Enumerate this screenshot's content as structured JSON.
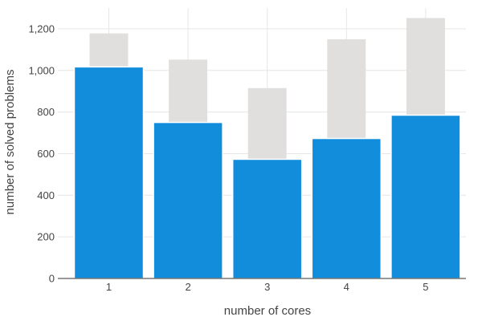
{
  "chart_data": {
    "type": "bar",
    "categories": [
      "1",
      "2",
      "3",
      "4",
      "5"
    ],
    "series": [
      {
        "values": [
          1017,
          750,
          573,
          673,
          785
        ],
        "color": "#118DDC"
      },
      {
        "values": [
          1178,
          1052,
          915,
          1150,
          1252
        ],
        "color": "#E0DFDE"
      }
    ],
    "xlabel": "number of cores",
    "ylabel": "number of solved problems",
    "ylim": [
      0,
      1300
    ],
    "yticks": [
      0,
      200,
      400,
      600,
      800,
      1000,
      1200
    ],
    "ytick_labels": [
      "0",
      "200",
      "400",
      "600",
      "800",
      "1,000",
      "1,200"
    ],
    "grid": true,
    "colors": {
      "grid": "#E6E6E6",
      "axis": "#333333",
      "text": "#444444"
    }
  }
}
